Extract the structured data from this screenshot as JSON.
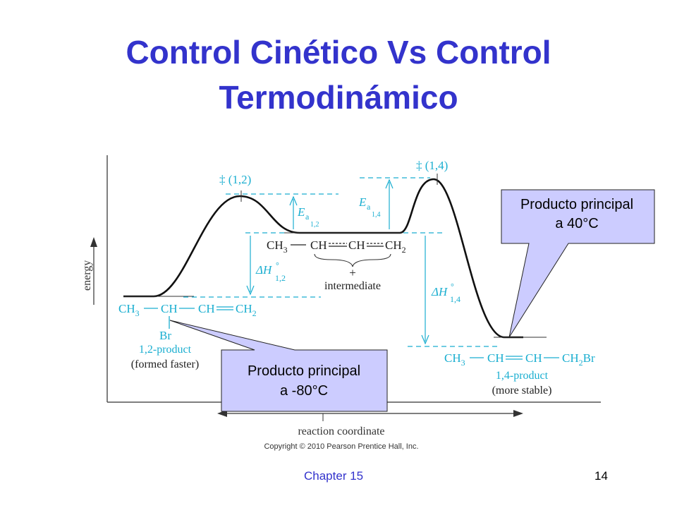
{
  "title": {
    "line1": "Control Cinético Vs Control",
    "line2": "Termodinámico"
  },
  "diagram": {
    "y_axis_label": "energy",
    "x_axis_label": "reaction coordinate",
    "copyright": "Copyright © 2010 Pearson Prentice Hall, Inc.",
    "ts12_label": "‡ (1,2)",
    "ts14_label": "‡ (1,4)",
    "ea12_main": "E",
    "ea12_sub": "a",
    "ea12_subsub": "1,2",
    "ea14_main": "E",
    "ea14_sub": "a",
    "ea14_subsub": "1,4",
    "dh12_main": "ΔH",
    "dh12_sup": "°",
    "dh12_sub": "1,2",
    "dh14_main": "ΔH",
    "dh14_sup": "°",
    "dh14_sub": "1,4",
    "intermediate_formula": {
      "ch3": "CH",
      "ch3_sub": "3",
      "ch_a": "CH",
      "ch_b": "CH",
      "ch2": "CH",
      "ch2_sub": "2"
    },
    "intermediate_plus": "+",
    "intermediate_label": "intermediate",
    "reactant_formula": {
      "ch3": "CH",
      "ch3_sub": "3",
      "ch": "CH",
      "ch_b": "CH",
      "ch2": "CH",
      "ch2_sub": "2"
    },
    "reactant_br": "Br",
    "product12_label": "1,2-product",
    "product12_note": "(formed faster)",
    "product14_formula": {
      "ch3": "CH",
      "ch3_sub": "3",
      "ch_a": "CH",
      "ch_b": "CH",
      "ch2br": "CH",
      "ch2br_sub": "2",
      "ch2br_tail": "Br"
    },
    "product14_label": "1,4-product",
    "product14_note": "(more stable)"
  },
  "callouts": {
    "top_right_line1": "Producto principal",
    "top_right_line2": "a 40°C",
    "bottom_line1": "Producto principal",
    "bottom_line2": "a -80°C",
    "fill_color": "#ccccff"
  },
  "footer": {
    "chapter": "Chapter 15",
    "page": "14"
  },
  "colors": {
    "title": "#3333cc",
    "annotation": "#1aaed0"
  }
}
